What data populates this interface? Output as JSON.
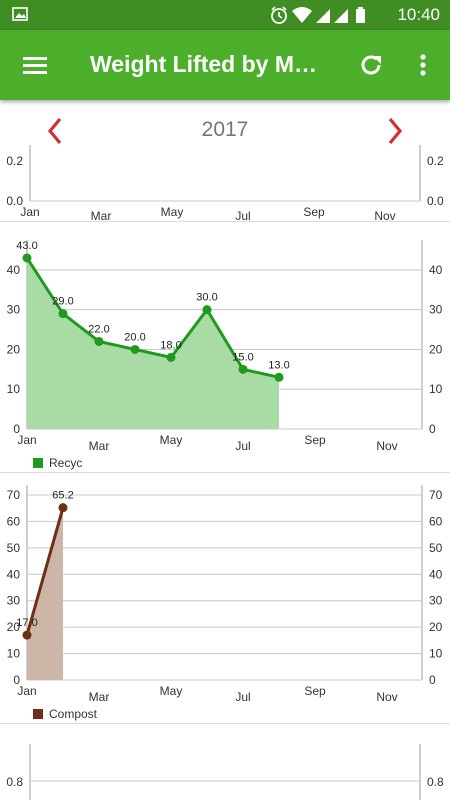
{
  "status_bar": {
    "time": "10:40",
    "icons": [
      "image-icon",
      "alarm-icon",
      "wifi-icon",
      "signal-icon",
      "signal-icon",
      "battery-icon"
    ]
  },
  "app_bar": {
    "title": "Weight Lifted by Month",
    "menu_icon": "hamburger-menu-icon",
    "refresh_icon": "refresh-icon",
    "overflow_icon": "more-vert-icon",
    "color": "#4caf2c",
    "status_color": "#3f8d23"
  },
  "year_selector": {
    "year": "2017",
    "prev_icon": "chevron-left-icon",
    "next_icon": "chevron-right-icon",
    "arrow_color": "#d32f2f"
  },
  "chart_data": [
    {
      "type": "line",
      "x_ticks": [
        "Jan",
        "Mar",
        "May",
        "Jul",
        "Sep",
        "Nov"
      ],
      "y_ticks_visible": [
        "0.2",
        "0.0"
      ],
      "values": [],
      "partially_visible": true
    },
    {
      "type": "area",
      "x_ticks": [
        "Jan",
        "Mar",
        "May",
        "Jul",
        "Sep",
        "Nov"
      ],
      "ylim": [
        0,
        45
      ],
      "y_ticks": [
        0,
        10,
        20,
        30,
        40
      ],
      "series": [
        {
          "name": "Recyc",
          "color": "#1e9a1e",
          "fill": "#a8dca4",
          "x": [
            "Jan",
            "Feb",
            "Mar",
            "Apr",
            "May",
            "Jun",
            "Jul",
            "Aug"
          ],
          "values": [
            43.0,
            29.0,
            22.0,
            20.0,
            18.0,
            30.0,
            15.0,
            13.0
          ],
          "labels": [
            "43.0",
            "29.0",
            "22.0",
            "20.0",
            "18.0",
            "30.0",
            "15.0",
            "13.0"
          ]
        }
      ]
    },
    {
      "type": "area",
      "x_ticks": [
        "Jan",
        "Mar",
        "May",
        "Jul",
        "Sep",
        "Nov"
      ],
      "ylim": [
        0,
        70
      ],
      "y_ticks": [
        0,
        10,
        20,
        30,
        40,
        50,
        60,
        70
      ],
      "series": [
        {
          "name": "Compost",
          "color": "#6b3015",
          "fill": "#cbb6a8",
          "x": [
            "Jan",
            "Feb"
          ],
          "values": [
            17.0,
            65.2
          ],
          "labels": [
            "17.0",
            "65.2"
          ]
        }
      ]
    },
    {
      "type": "line",
      "y_ticks_visible": [
        "0.8"
      ],
      "values": [],
      "partially_visible": true
    }
  ]
}
